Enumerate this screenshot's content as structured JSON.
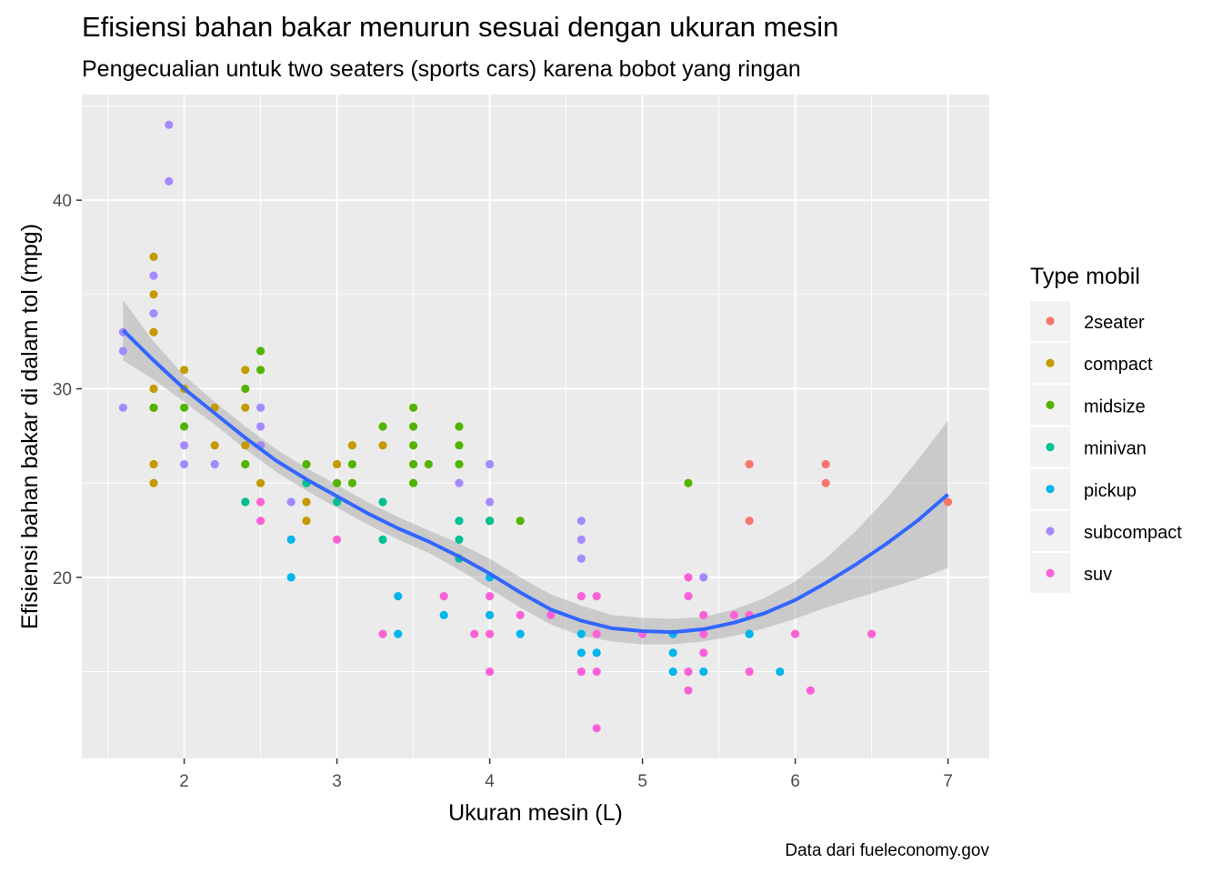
{
  "chart_data": {
    "type": "scatter",
    "title": "Efisiensi bahan bakar menurun sesuai dengan ukuran mesin",
    "subtitle": "Pengecualian untuk two seaters (sports cars) karena bobot yang ringan",
    "xlabel": "Ukuran mesin (L)",
    "ylabel": "Efisiensi bahan bakar di dalam tol (mpg)",
    "caption": "Data dari fueleconomy.gov",
    "xlim": [
      1.33,
      7.27
    ],
    "ylim": [
      10.4,
      45.6
    ],
    "x_ticks": [
      2,
      3,
      4,
      5,
      6,
      7
    ],
    "x_tick_labels": [
      "2",
      "3",
      "4",
      "5",
      "6",
      "7"
    ],
    "y_ticks": [
      20,
      30,
      40
    ],
    "y_tick_labels": [
      "20",
      "30",
      "40"
    ],
    "grid": true,
    "legend": {
      "title": "Type mobil",
      "position": "right"
    },
    "series": [
      {
        "name": "2seater",
        "color": "#F8766D",
        "points": [
          [
            5.7,
            26
          ],
          [
            5.7,
            23
          ],
          [
            6.2,
            26
          ],
          [
            6.2,
            25
          ],
          [
            7.0,
            24
          ]
        ]
      },
      {
        "name": "compact",
        "color": "#C49A00",
        "points": [
          [
            1.8,
            37
          ],
          [
            1.8,
            35
          ],
          [
            1.8,
            33
          ],
          [
            1.8,
            30
          ],
          [
            1.8,
            29
          ],
          [
            1.8,
            26
          ],
          [
            1.8,
            25
          ],
          [
            2.0,
            31
          ],
          [
            2.0,
            30
          ],
          [
            2.2,
            29
          ],
          [
            2.2,
            27
          ],
          [
            2.4,
            31
          ],
          [
            2.4,
            29
          ],
          [
            2.4,
            27
          ],
          [
            2.5,
            27
          ],
          [
            2.5,
            25
          ],
          [
            2.8,
            24
          ],
          [
            2.8,
            23
          ],
          [
            3.0,
            26
          ],
          [
            3.1,
            27
          ],
          [
            3.3,
            27
          ]
        ]
      },
      {
        "name": "midsize",
        "color": "#53B400",
        "points": [
          [
            1.8,
            29
          ],
          [
            2.0,
            29
          ],
          [
            2.0,
            28
          ],
          [
            2.4,
            30
          ],
          [
            2.4,
            26
          ],
          [
            2.5,
            32
          ],
          [
            2.5,
            31
          ],
          [
            2.8,
            26
          ],
          [
            3.0,
            25
          ],
          [
            3.1,
            26
          ],
          [
            3.1,
            25
          ],
          [
            3.3,
            28
          ],
          [
            3.5,
            29
          ],
          [
            3.5,
            28
          ],
          [
            3.5,
            27
          ],
          [
            3.5,
            26
          ],
          [
            3.5,
            25
          ],
          [
            3.6,
            26
          ],
          [
            3.8,
            28
          ],
          [
            3.8,
            27
          ],
          [
            3.8,
            26
          ],
          [
            4.0,
            23
          ],
          [
            4.2,
            23
          ],
          [
            5.3,
            25
          ]
        ]
      },
      {
        "name": "minivan",
        "color": "#00C094",
        "points": [
          [
            2.4,
            24
          ],
          [
            2.8,
            25
          ],
          [
            3.0,
            24
          ],
          [
            3.3,
            24
          ],
          [
            3.3,
            22
          ],
          [
            3.8,
            23
          ],
          [
            3.8,
            22
          ],
          [
            3.8,
            21
          ],
          [
            4.0,
            23
          ],
          [
            5.7,
            17
          ]
        ]
      },
      {
        "name": "pickup",
        "color": "#00B6EB",
        "points": [
          [
            2.7,
            22
          ],
          [
            2.7,
            20
          ],
          [
            3.4,
            19
          ],
          [
            3.4,
            17
          ],
          [
            3.7,
            18
          ],
          [
            4.0,
            20
          ],
          [
            4.0,
            18
          ],
          [
            4.2,
            17
          ],
          [
            4.6,
            17
          ],
          [
            4.6,
            16
          ],
          [
            4.7,
            16
          ],
          [
            5.2,
            17
          ],
          [
            5.2,
            16
          ],
          [
            5.2,
            15
          ],
          [
            5.4,
            15
          ],
          [
            5.7,
            17
          ],
          [
            5.9,
            15
          ]
        ]
      },
      {
        "name": "subcompact",
        "color": "#A58AFF",
        "points": [
          [
            1.6,
            33
          ],
          [
            1.6,
            32
          ],
          [
            1.6,
            29
          ],
          [
            1.8,
            36
          ],
          [
            1.8,
            34
          ],
          [
            1.9,
            44
          ],
          [
            1.9,
            41
          ],
          [
            2.0,
            27
          ],
          [
            2.0,
            26
          ],
          [
            2.2,
            26
          ],
          [
            2.5,
            29
          ],
          [
            2.5,
            28
          ],
          [
            2.5,
            27
          ],
          [
            2.7,
            24
          ],
          [
            3.8,
            25
          ],
          [
            4.0,
            26
          ],
          [
            4.0,
            24
          ],
          [
            4.6,
            23
          ],
          [
            4.6,
            22
          ],
          [
            4.6,
            21
          ],
          [
            5.4,
            20
          ]
        ]
      },
      {
        "name": "suv",
        "color": "#FB61D7",
        "points": [
          [
            2.5,
            24
          ],
          [
            2.5,
            23
          ],
          [
            3.0,
            22
          ],
          [
            3.3,
            17
          ],
          [
            3.7,
            19
          ],
          [
            3.9,
            17
          ],
          [
            4.0,
            19
          ],
          [
            4.0,
            17
          ],
          [
            4.0,
            15
          ],
          [
            4.2,
            18
          ],
          [
            4.4,
            18
          ],
          [
            4.6,
            19
          ],
          [
            4.6,
            15
          ],
          [
            4.7,
            19
          ],
          [
            4.7,
            17
          ],
          [
            4.7,
            15
          ],
          [
            4.7,
            12
          ],
          [
            5.0,
            17
          ],
          [
            5.3,
            20
          ],
          [
            5.3,
            19
          ],
          [
            5.3,
            15
          ],
          [
            5.3,
            14
          ],
          [
            5.4,
            18
          ],
          [
            5.4,
            17
          ],
          [
            5.4,
            16
          ],
          [
            5.6,
            18
          ],
          [
            5.7,
            18
          ],
          [
            5.7,
            15
          ],
          [
            6.0,
            17
          ],
          [
            6.1,
            14
          ],
          [
            6.5,
            17
          ]
        ]
      }
    ],
    "smooth": {
      "method": "loess",
      "color": "#3366FF",
      "se_color": "#999999",
      "x": [
        1.6,
        1.8,
        2.0,
        2.2,
        2.4,
        2.6,
        2.8,
        3.0,
        3.2,
        3.4,
        3.6,
        3.8,
        4.0,
        4.2,
        4.4,
        4.6,
        4.8,
        5.0,
        5.2,
        5.4,
        5.6,
        5.8,
        6.0,
        6.2,
        6.4,
        6.6,
        6.8,
        7.0
      ],
      "y": [
        33.1,
        31.5,
        30.0,
        28.7,
        27.4,
        26.2,
        25.2,
        24.3,
        23.4,
        22.6,
        21.9,
        21.1,
        20.2,
        19.2,
        18.3,
        17.7,
        17.3,
        17.15,
        17.1,
        17.25,
        17.6,
        18.1,
        18.8,
        19.7,
        20.7,
        21.8,
        23.0,
        24.4
      ],
      "lower": [
        31.5,
        30.5,
        29.3,
        28.1,
        26.8,
        25.6,
        24.6,
        23.7,
        22.8,
        22.0,
        21.3,
        20.4,
        19.4,
        18.4,
        17.5,
        16.9,
        16.6,
        16.45,
        16.45,
        16.6,
        16.9,
        17.3,
        17.8,
        18.4,
        18.9,
        19.4,
        19.9,
        20.5
      ],
      "upper": [
        34.7,
        32.5,
        30.7,
        29.3,
        28.0,
        26.8,
        25.8,
        24.9,
        24.0,
        23.2,
        22.5,
        21.8,
        21.0,
        20.0,
        19.1,
        18.5,
        18.0,
        17.85,
        17.8,
        17.9,
        18.3,
        18.9,
        19.8,
        21.0,
        22.5,
        24.2,
        26.2,
        28.3
      ]
    }
  }
}
